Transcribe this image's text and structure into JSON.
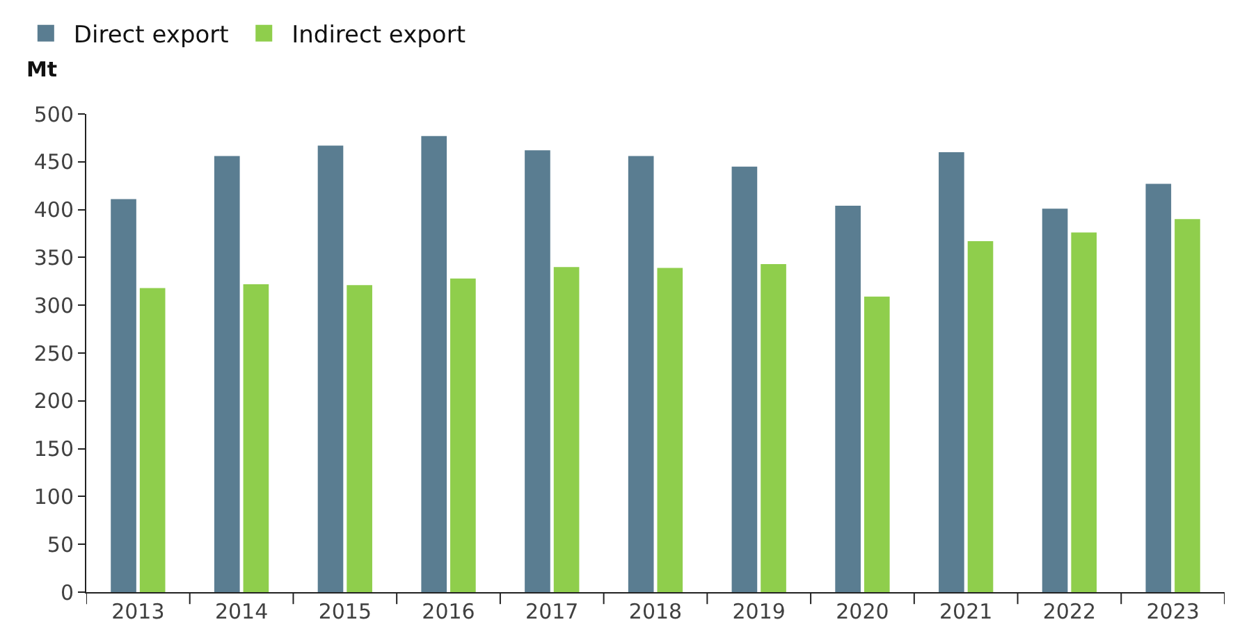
{
  "chart_data": {
    "type": "bar",
    "ylabel": "Mt",
    "categories": [
      "2013",
      "2014",
      "2015",
      "2016",
      "2017",
      "2018",
      "2019",
      "2020",
      "2021",
      "2022",
      "2023"
    ],
    "series": [
      {
        "name": "Direct export",
        "color": "#5a7d91",
        "values": [
          411,
          456,
          467,
          477,
          462,
          456,
          445,
          404,
          460,
          401,
          427
        ]
      },
      {
        "name": "Indirect export",
        "color": "#8fce4c",
        "values": [
          318,
          322,
          321,
          328,
          340,
          339,
          343,
          309,
          367,
          376,
          390
        ]
      }
    ],
    "ylim": [
      0,
      500
    ],
    "yticks": [
      0,
      50,
      100,
      150,
      200,
      250,
      300,
      350,
      400,
      450,
      500
    ],
    "grid": false,
    "legend": "top left"
  }
}
